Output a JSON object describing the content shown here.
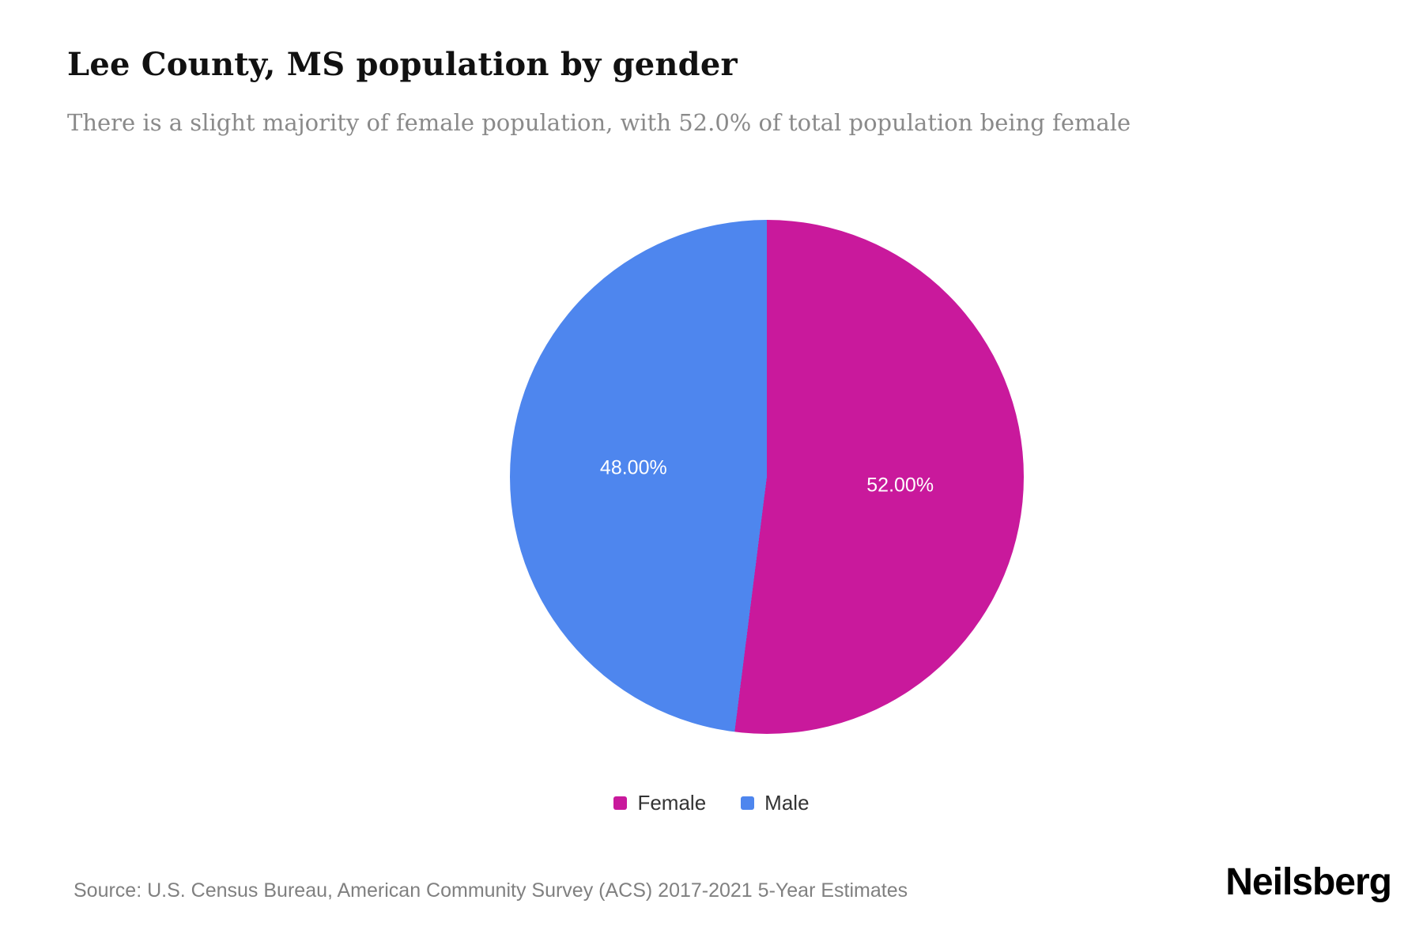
{
  "header": {
    "title": "Lee County, MS population by gender",
    "subtitle": "There is a slight majority of female population, with 52.0% of total population being female"
  },
  "chart_data": {
    "type": "pie",
    "title": "Lee County, MS population by gender",
    "start_angle_deg": 0,
    "direction": "clockwise",
    "legend_position": "bottom",
    "slices": [
      {
        "label": "Female",
        "value": 52.0,
        "display": "52.00%",
        "color": "#c9199c"
      },
      {
        "label": "Male",
        "value": 48.0,
        "display": "48.00%",
        "color": "#4e86ee"
      }
    ]
  },
  "footer": {
    "source": "Source: U.S. Census Bureau, American Community Survey (ACS) 2017-2021 5-Year Estimates",
    "brand": "Neilsberg"
  }
}
